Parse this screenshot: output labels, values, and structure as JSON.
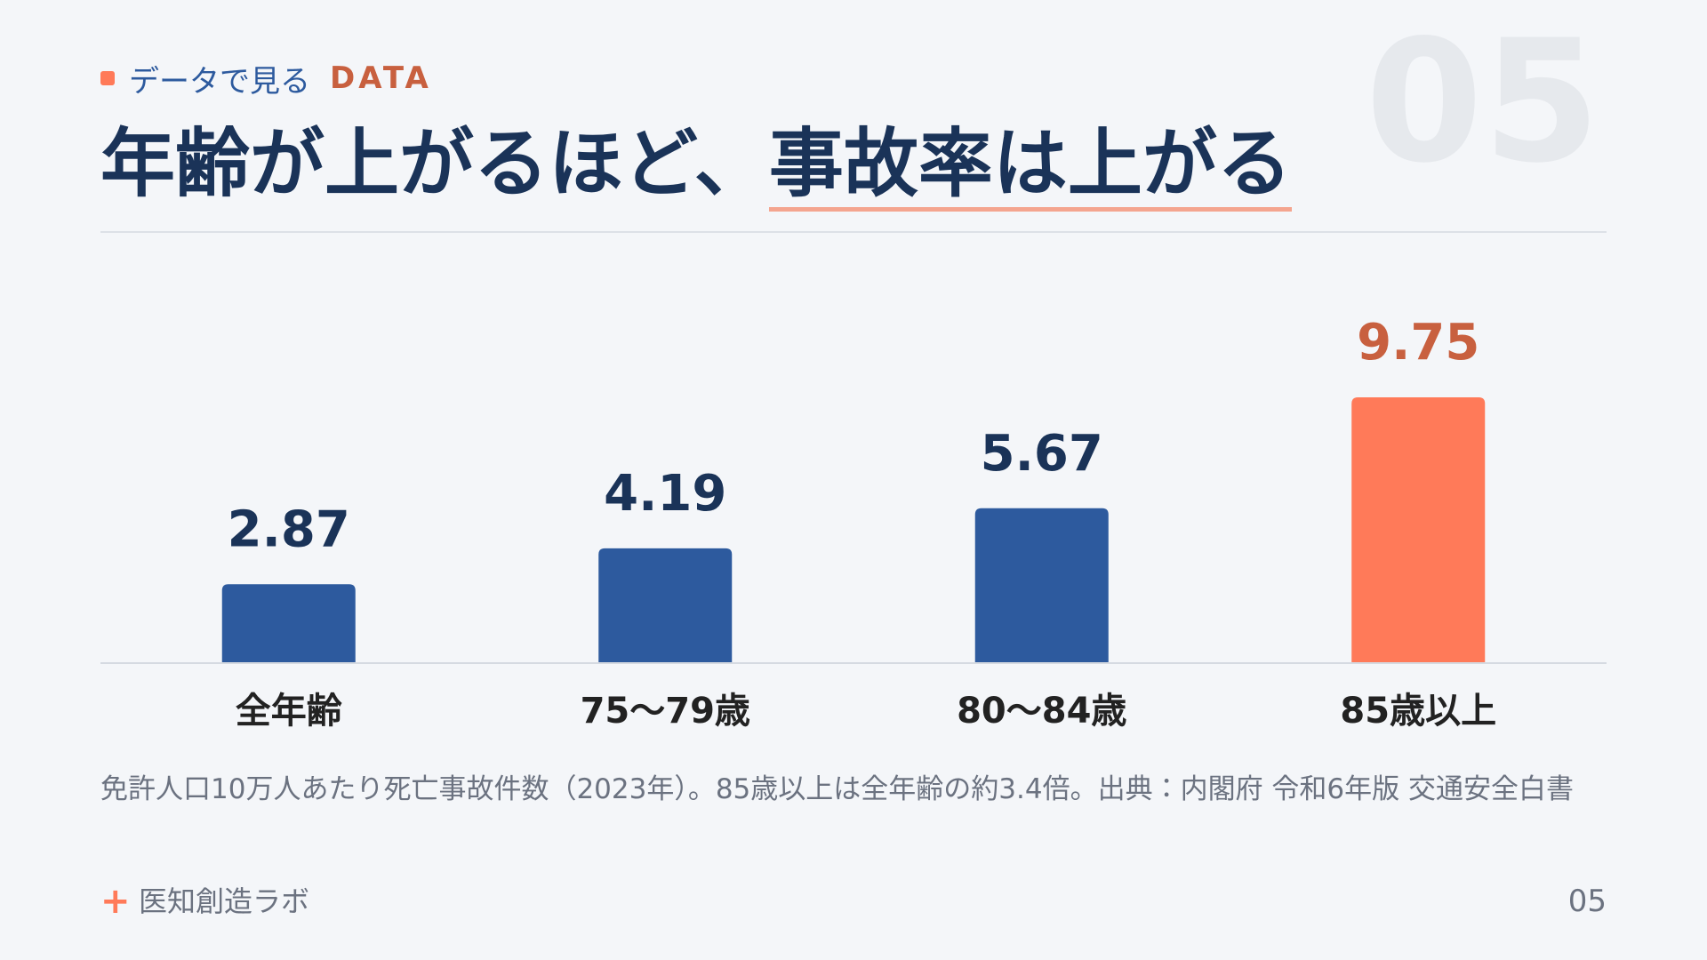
{
  "header": {
    "label": "データで見る",
    "label_en": "DATA",
    "watermark": "05"
  },
  "title": {
    "lead": "年齢が上がるほど、",
    "emphasis": "事故率は上がる"
  },
  "chart_data": {
    "type": "bar",
    "categories": [
      "全年齢",
      "75〜79歳",
      "80〜84歳",
      "85歳以上"
    ],
    "values": [
      2.87,
      4.19,
      5.67,
      9.75
    ],
    "colors": [
      "#2d5a9e",
      "#2d5a9e",
      "#2d5a9e",
      "#ff7a59"
    ],
    "label_colors": [
      "#1a3358",
      "#1a3358",
      "#1a3358",
      "#c8603f"
    ]
  },
  "note": "免許人口10万人あたり死亡事故件数（2023年）。85歳以上は全年齢の約3.4倍。出典：内閣府 令和6年版 交通安全白書",
  "footer": {
    "brand": "医知創造ラボ",
    "page": "05"
  }
}
